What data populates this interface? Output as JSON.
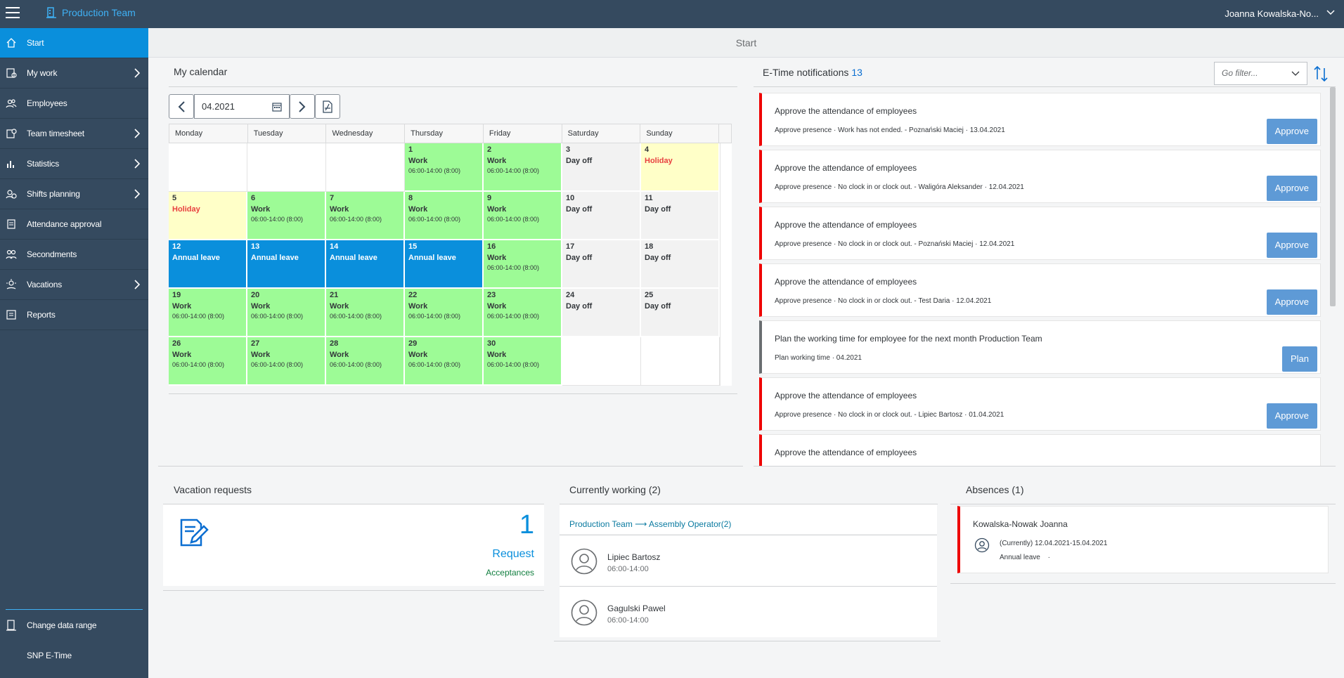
{
  "header": {
    "team_title": "Production Team",
    "user_name": "Joanna Kowalska-No..."
  },
  "sidebar": {
    "items": [
      {
        "label": "Start",
        "icon": "home-icon",
        "active": true,
        "has_children": false
      },
      {
        "label": "My work",
        "icon": "my-work-icon",
        "has_children": true
      },
      {
        "label": "Employees",
        "icon": "employees-icon",
        "has_children": false
      },
      {
        "label": "Team timesheet",
        "icon": "timesheet-icon",
        "has_children": true
      },
      {
        "label": "Statistics",
        "icon": "statistics-icon",
        "has_children": true
      },
      {
        "label": "Shifts planning",
        "icon": "shifts-icon",
        "has_children": true
      },
      {
        "label": "Attendance approval",
        "icon": "attendance-icon",
        "has_children": false
      },
      {
        "label": "Secondments",
        "icon": "secondments-icon",
        "has_children": false
      },
      {
        "label": "Vacations",
        "icon": "vacations-icon",
        "has_children": true
      },
      {
        "label": "Reports",
        "icon": "reports-icon",
        "has_children": false
      }
    ],
    "bottom": {
      "change_range": "Change data range",
      "app_name": "SNP E-Time"
    }
  },
  "page": {
    "title": "Start"
  },
  "calendar": {
    "title": "My calendar",
    "date_value": "04.2021",
    "weekdays": [
      "Monday",
      "Tuesday",
      "Wednesday",
      "Thursday",
      "Friday",
      "Saturday",
      "Sunday"
    ],
    "weeks": [
      [
        {
          "type": "blank"
        },
        {
          "type": "blank"
        },
        {
          "type": "blank"
        },
        {
          "day": "1",
          "type": "work",
          "label": "Work",
          "time": "06:00-14:00 (8:00)"
        },
        {
          "day": "2",
          "type": "work",
          "label": "Work",
          "time": "06:00-14:00 (8:00)"
        },
        {
          "day": "3",
          "type": "off",
          "label": "Day off"
        },
        {
          "day": "4",
          "type": "holi",
          "label": "Holiday"
        }
      ],
      [
        {
          "day": "5",
          "type": "holi",
          "label": "Holiday"
        },
        {
          "day": "6",
          "type": "work",
          "label": "Work",
          "time": "06:00-14:00 (8:00)"
        },
        {
          "day": "7",
          "type": "work",
          "label": "Work",
          "time": "06:00-14:00 (8:00)"
        },
        {
          "day": "8",
          "type": "work",
          "label": "Work",
          "time": "06:00-14:00 (8:00)"
        },
        {
          "day": "9",
          "type": "work",
          "label": "Work",
          "time": "06:00-14:00 (8:00)"
        },
        {
          "day": "10",
          "type": "off",
          "label": "Day off"
        },
        {
          "day": "11",
          "type": "off",
          "label": "Day off"
        }
      ],
      [
        {
          "day": "12",
          "type": "leave",
          "label": "Annual leave"
        },
        {
          "day": "13",
          "type": "leave",
          "label": "Annual leave"
        },
        {
          "day": "14",
          "type": "leave",
          "label": "Annual leave"
        },
        {
          "day": "15",
          "type": "leave",
          "label": "Annual leave"
        },
        {
          "day": "16",
          "type": "work",
          "label": "Work",
          "time": "06:00-14:00 (8:00)"
        },
        {
          "day": "17",
          "type": "off",
          "label": "Day off"
        },
        {
          "day": "18",
          "type": "off",
          "label": "Day off"
        }
      ],
      [
        {
          "day": "19",
          "type": "work",
          "label": "Work",
          "time": "06:00-14:00 (8:00)"
        },
        {
          "day": "20",
          "type": "work",
          "label": "Work",
          "time": "06:00-14:00 (8:00)"
        },
        {
          "day": "21",
          "type": "work",
          "label": "Work",
          "time": "06:00-14:00 (8:00)"
        },
        {
          "day": "22",
          "type": "work",
          "label": "Work",
          "time": "06:00-14:00 (8:00)"
        },
        {
          "day": "23",
          "type": "work",
          "label": "Work",
          "time": "06:00-14:00 (8:00)"
        },
        {
          "day": "24",
          "type": "off",
          "label": "Day off"
        },
        {
          "day": "25",
          "type": "off",
          "label": "Day off"
        }
      ],
      [
        {
          "day": "26",
          "type": "work",
          "label": "Work",
          "time": "06:00-14:00 (8:00)"
        },
        {
          "day": "27",
          "type": "work",
          "label": "Work",
          "time": "06:00-14:00 (8:00)"
        },
        {
          "day": "28",
          "type": "work",
          "label": "Work",
          "time": "06:00-14:00 (8:00)"
        },
        {
          "day": "29",
          "type": "work",
          "label": "Work",
          "time": "06:00-14:00 (8:00)"
        },
        {
          "day": "30",
          "type": "work",
          "label": "Work",
          "time": "06:00-14:00 (8:00)"
        },
        {
          "type": "blank"
        },
        {
          "type": "blank"
        }
      ]
    ]
  },
  "notifications": {
    "title": "E-Time notifications",
    "count": "13",
    "filter_placeholder": "Go filter...",
    "items": [
      {
        "title": "Approve the attendance of employees",
        "sub": "Approve presence · Work has not ended. - Poznański Maciej · 13.04.2021",
        "button": "Approve",
        "kind": "red"
      },
      {
        "title": "Approve the attendance of employees",
        "sub": "Approve presence · No clock in or clock out. - Waligóra Aleksander · 12.04.2021",
        "button": "Approve",
        "kind": "red"
      },
      {
        "title": "Approve the attendance of employees",
        "sub": "Approve presence · No clock in or clock out. - Poznański Maciej · 12.04.2021",
        "button": "Approve",
        "kind": "red"
      },
      {
        "title": "Approve the attendance of employees",
        "sub": "Approve presence · No clock in or clock out. - Test Daria · 12.04.2021",
        "button": "Approve",
        "kind": "red"
      },
      {
        "title": "Plan the working time for employee for the next month Production Team",
        "sub": "Plan working time · 04.2021",
        "button": "Plan",
        "kind": "grey"
      },
      {
        "title": "Approve the attendance of employees",
        "sub": "Approve presence · No clock in or clock out. - Lipiec Bartosz · 01.04.2021",
        "button": "Approve",
        "kind": "red"
      },
      {
        "title": "Approve the attendance of employees",
        "sub": "",
        "button": "",
        "kind": "red"
      }
    ]
  },
  "vacation": {
    "title": "Vacation requests",
    "count": "1",
    "label": "Request",
    "link": "Acceptances"
  },
  "working": {
    "title": "Currently working (2)",
    "group": "Production Team ⟶ Assembly Operator(2)",
    "people": [
      {
        "name": "Lipiec Bartosz",
        "time": "06:00-14:00"
      },
      {
        "name": "Gagulski Pawel",
        "time": "06:00-14:00"
      }
    ]
  },
  "absences": {
    "title": "Absences (1)",
    "name": "Kowalska-Nowak Joanna",
    "period": "(Currently) 12.04.2021-15.04.2021",
    "type": "Annual leave",
    "dot": "·"
  },
  "colors": {
    "shell": "#354a5f",
    "accent": "#0a8fdc",
    "work": "#9dfb96",
    "holiday": "#ffffc8",
    "alert": "#ee0000",
    "approve_button": "#5e9ad6"
  }
}
